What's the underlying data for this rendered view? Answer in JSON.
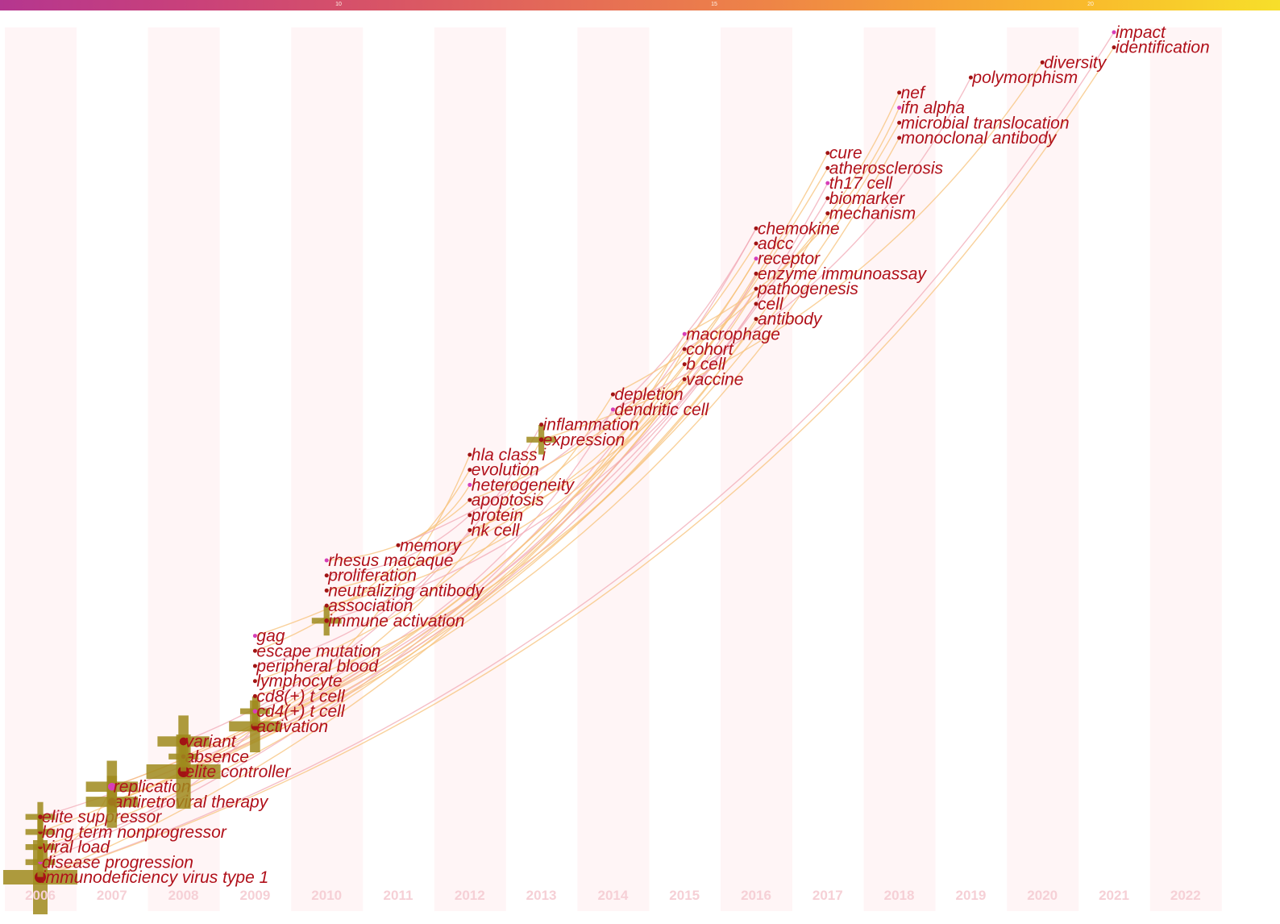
{
  "colorbar": {
    "colors": [
      "#b5368f",
      "#d85466",
      "#ee8447",
      "#f9bb2c",
      "#f7df2a"
    ],
    "ticks": [
      "10",
      "15",
      "20"
    ]
  },
  "years": [
    "2006",
    "2007",
    "2008",
    "2009",
    "2010",
    "2011",
    "2012",
    "2013",
    "2014",
    "2015",
    "2016",
    "2017",
    "2018",
    "2019",
    "2020",
    "2021",
    "2022"
  ],
  "palette": {
    "label": "#b0101a",
    "band": "#fff5f6",
    "year": "#f6d0d6",
    "link_warm": "#f7c27a",
    "link_pink": "#f2a9b6",
    "node_olive": "#9f8a1c",
    "node_red": "#a11414",
    "node_magenta": "#d63fb8"
  },
  "keywords": [
    {
      "label": "immunodeficiency virus type 1",
      "year": 2006,
      "rank": 0,
      "size": "xl"
    },
    {
      "label": "disease progression",
      "year": 2006,
      "rank": 1,
      "size": "m"
    },
    {
      "label": "viral load",
      "year": 2006,
      "rank": 2,
      "size": "m"
    },
    {
      "label": "long term nonprogressor",
      "year": 2006,
      "rank": 3,
      "size": "m"
    },
    {
      "label": "elite suppressor",
      "year": 2006,
      "rank": 4,
      "size": "m"
    },
    {
      "label": "antiretroviral therapy",
      "year": 2007,
      "rank": 5,
      "size": "l"
    },
    {
      "label": "replication",
      "year": 2007,
      "rank": 6,
      "size": "l"
    },
    {
      "label": "elite controller",
      "year": 2008,
      "rank": 7,
      "size": "xl"
    },
    {
      "label": "absence",
      "year": 2008,
      "rank": 8,
      "size": "m"
    },
    {
      "label": "variant",
      "year": 2008,
      "rank": 9,
      "size": "l"
    },
    {
      "label": "activation",
      "year": 2009,
      "rank": 10,
      "size": "l"
    },
    {
      "label": "cd4(+) t cell",
      "year": 2009,
      "rank": 11,
      "size": "m"
    },
    {
      "label": "cd8(+) t cell",
      "year": 2009,
      "rank": 12,
      "size": "s"
    },
    {
      "label": "lymphocyte",
      "year": 2009,
      "rank": 13,
      "size": "s"
    },
    {
      "label": "peripheral blood",
      "year": 2009,
      "rank": 14,
      "size": "s"
    },
    {
      "label": "escape mutation",
      "year": 2009,
      "rank": 15,
      "size": "s"
    },
    {
      "label": "gag",
      "year": 2009,
      "rank": 16,
      "size": "s"
    },
    {
      "label": "immune activation",
      "year": 2010,
      "rank": 17,
      "size": "m"
    },
    {
      "label": "association",
      "year": 2010,
      "rank": 18,
      "size": "s"
    },
    {
      "label": "neutralizing antibody",
      "year": 2010,
      "rank": 19,
      "size": "s"
    },
    {
      "label": "proliferation",
      "year": 2010,
      "rank": 20,
      "size": "s"
    },
    {
      "label": "rhesus macaque",
      "year": 2010,
      "rank": 21,
      "size": "s"
    },
    {
      "label": "memory",
      "year": 2011,
      "rank": 22,
      "size": "s"
    },
    {
      "label": "nk cell",
      "year": 2012,
      "rank": 23,
      "size": "s"
    },
    {
      "label": "protein",
      "year": 2012,
      "rank": 24,
      "size": "s"
    },
    {
      "label": "apoptosis",
      "year": 2012,
      "rank": 25,
      "size": "s"
    },
    {
      "label": "heterogeneity",
      "year": 2012,
      "rank": 26,
      "size": "s"
    },
    {
      "label": "evolution",
      "year": 2012,
      "rank": 27,
      "size": "s"
    },
    {
      "label": "hla class i",
      "year": 2012,
      "rank": 28,
      "size": "s"
    },
    {
      "label": "expression",
      "year": 2013,
      "rank": 29,
      "size": "m"
    },
    {
      "label": "inflammation",
      "year": 2013,
      "rank": 30,
      "size": "s"
    },
    {
      "label": "dendritic cell",
      "year": 2014,
      "rank": 31,
      "size": "s"
    },
    {
      "label": "depletion",
      "year": 2014,
      "rank": 32,
      "size": "s"
    },
    {
      "label": "vaccine",
      "year": 2015,
      "rank": 33,
      "size": "s"
    },
    {
      "label": "b cell",
      "year": 2015,
      "rank": 34,
      "size": "s"
    },
    {
      "label": "cohort",
      "year": 2015,
      "rank": 35,
      "size": "s"
    },
    {
      "label": "macrophage",
      "year": 2015,
      "rank": 36,
      "size": "s"
    },
    {
      "label": "antibody",
      "year": 2016,
      "rank": 37,
      "size": "s"
    },
    {
      "label": "cell",
      "year": 2016,
      "rank": 38,
      "size": "s"
    },
    {
      "label": "pathogenesis",
      "year": 2016,
      "rank": 39,
      "size": "s"
    },
    {
      "label": "enzyme immunoassay",
      "year": 2016,
      "rank": 40,
      "size": "s"
    },
    {
      "label": "receptor",
      "year": 2016,
      "rank": 41,
      "size": "s"
    },
    {
      "label": "adcc",
      "year": 2016,
      "rank": 42,
      "size": "s"
    },
    {
      "label": "chemokine",
      "year": 2016,
      "rank": 43,
      "size": "s"
    },
    {
      "label": "mechanism",
      "year": 2017,
      "rank": 44,
      "size": "s"
    },
    {
      "label": "biomarker",
      "year": 2017,
      "rank": 45,
      "size": "s"
    },
    {
      "label": "th17 cell",
      "year": 2017,
      "rank": 46,
      "size": "s"
    },
    {
      "label": "atherosclerosis",
      "year": 2017,
      "rank": 47,
      "size": "s"
    },
    {
      "label": "cure",
      "year": 2017,
      "rank": 48,
      "size": "s"
    },
    {
      "label": "monoclonal antibody",
      "year": 2018,
      "rank": 49,
      "size": "s"
    },
    {
      "label": "microbial translocation",
      "year": 2018,
      "rank": 50,
      "size": "s"
    },
    {
      "label": "ifn alpha",
      "year": 2018,
      "rank": 51,
      "size": "s"
    },
    {
      "label": "nef",
      "year": 2018,
      "rank": 52,
      "size": "s"
    },
    {
      "label": "polymorphism",
      "year": 2019,
      "rank": 53,
      "size": "s"
    },
    {
      "label": "diversity",
      "year": 2020,
      "rank": 54,
      "size": "s"
    },
    {
      "label": "identification",
      "year": 2021,
      "rank": 55,
      "size": "s"
    },
    {
      "label": "impact",
      "year": 2021,
      "rank": 56,
      "size": "s"
    }
  ],
  "links": [
    [
      "immunodeficiency virus type 1",
      "impact"
    ],
    [
      "immunodeficiency virus type 1",
      "identification"
    ],
    [
      "immunodeficiency virus type 1",
      "cure"
    ],
    [
      "disease progression",
      "chemokine"
    ],
    [
      "viral load",
      "enzyme immunoassay"
    ],
    [
      "long term nonprogressor",
      "atherosclerosis"
    ],
    [
      "elite suppressor",
      "pathogenesis"
    ],
    [
      "antiretroviral therapy",
      "microbial translocation"
    ],
    [
      "antiretroviral therapy",
      "mechanism"
    ],
    [
      "replication",
      "biomarker"
    ],
    [
      "replication",
      "receptor"
    ],
    [
      "elite controller",
      "monoclonal antibody"
    ],
    [
      "elite controller",
      "th17 cell"
    ],
    [
      "elite controller",
      "hla class i"
    ],
    [
      "absence",
      "expression"
    ],
    [
      "variant",
      "inflammation"
    ],
    [
      "activation",
      "macrophage"
    ],
    [
      "activation",
      "cohort"
    ],
    [
      "cd4(+) t cell",
      "dendritic cell"
    ],
    [
      "cd8(+) t cell",
      "antibody"
    ],
    [
      "lymphocyte",
      "depletion"
    ],
    [
      "peripheral blood",
      "nk cell"
    ],
    [
      "escape mutation",
      "evolution"
    ],
    [
      "gag",
      "adcc"
    ],
    [
      "immune activation",
      "cell"
    ],
    [
      "association",
      "vaccine"
    ],
    [
      "neutralizing antibody",
      "b cell"
    ],
    [
      "proliferation",
      "protein"
    ],
    [
      "rhesus macaque",
      "apoptosis"
    ],
    [
      "memory",
      "heterogeneity"
    ],
    [
      "memory",
      "chemokine"
    ],
    [
      "nk cell",
      "pathogenesis"
    ],
    [
      "expression",
      "diversity"
    ],
    [
      "dendritic cell",
      "polymorphism"
    ],
    [
      "depletion",
      "nef"
    ],
    [
      "macrophage",
      "ifn alpha"
    ],
    [
      "cohort",
      "enzyme immunoassay"
    ],
    [
      "apoptosis",
      "receptor"
    ],
    [
      "disease progression",
      "replication"
    ],
    [
      "viral load",
      "activation"
    ]
  ]
}
